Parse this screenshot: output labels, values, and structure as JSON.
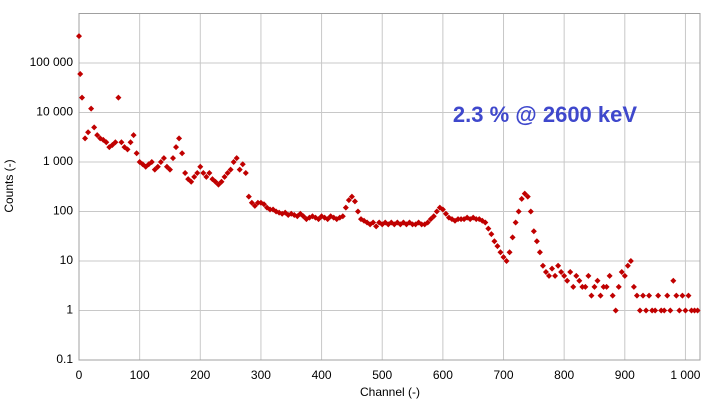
{
  "chart_data": {
    "type": "scatter",
    "annotation": "2.3 % @ 2600 keV",
    "x_label": "Channel (-)",
    "y_label": "Counts (-)",
    "log_y": true,
    "grid": true,
    "color": "#c00000",
    "annotation_color": "#3f48cc",
    "xlim": [
      0,
      1024
    ],
    "ylim": [
      0.1,
      1000000
    ],
    "xticks": [
      0,
      100,
      200,
      300,
      400,
      500,
      600,
      700,
      800,
      900,
      {
        "value": 1000,
        "label": "1 000"
      }
    ],
    "yticks": [
      0.1,
      1,
      10,
      100,
      {
        "value": 1000,
        "label": "1 000"
      },
      {
        "value": 10000,
        "label": "10 000"
      },
      {
        "value": 100000,
        "label": "100 000"
      }
    ],
    "x": [
      0,
      2,
      5,
      10,
      15,
      20,
      25,
      30,
      35,
      40,
      45,
      50,
      55,
      60,
      65,
      70,
      75,
      80,
      85,
      90,
      95,
      100,
      105,
      110,
      115,
      120,
      125,
      130,
      135,
      140,
      145,
      150,
      155,
      160,
      165,
      170,
      175,
      180,
      185,
      190,
      195,
      200,
      205,
      210,
      215,
      220,
      225,
      230,
      235,
      240,
      245,
      250,
      255,
      260,
      265,
      270,
      275,
      280,
      285,
      290,
      295,
      300,
      305,
      310,
      315,
      320,
      325,
      330,
      335,
      340,
      345,
      350,
      355,
      360,
      365,
      370,
      375,
      380,
      385,
      390,
      395,
      400,
      405,
      410,
      415,
      420,
      425,
      430,
      435,
      440,
      445,
      450,
      455,
      460,
      465,
      470,
      475,
      480,
      485,
      490,
      495,
      500,
      505,
      510,
      515,
      520,
      525,
      530,
      535,
      540,
      545,
      550,
      555,
      560,
      565,
      570,
      575,
      580,
      585,
      590,
      595,
      600,
      605,
      610,
      615,
      620,
      625,
      630,
      635,
      640,
      645,
      650,
      655,
      660,
      665,
      670,
      675,
      680,
      685,
      690,
      695,
      700,
      705,
      710,
      715,
      720,
      725,
      730,
      735,
      740,
      745,
      750,
      755,
      760,
      765,
      770,
      775,
      780,
      785,
      790,
      795,
      800,
      805,
      810,
      815,
      820,
      825,
      830,
      835,
      840,
      845,
      850,
      855,
      860,
      865,
      870,
      875,
      880,
      885,
      890,
      895,
      900,
      905,
      910,
      915,
      920,
      925,
      930,
      935,
      940,
      945,
      950,
      955,
      960,
      965,
      970,
      975,
      980,
      985,
      990,
      995,
      1000,
      1005,
      1010,
      1015,
      1020
    ],
    "values": [
      350000,
      60000,
      20000,
      3000,
      4000,
      12000,
      5000,
      3500,
      3000,
      2800,
      2500,
      2000,
      2200,
      2500,
      20000,
      2500,
      2000,
      1800,
      2500,
      3500,
      1500,
      1000,
      900,
      800,
      900,
      1000,
      700,
      800,
      1000,
      1200,
      800,
      700,
      1200,
      2000,
      3000,
      1500,
      600,
      450,
      400,
      500,
      600,
      800,
      600,
      500,
      600,
      450,
      400,
      350,
      400,
      500,
      600,
      700,
      1000,
      1200,
      700,
      900,
      600,
      200,
      150,
      130,
      150,
      150,
      140,
      120,
      110,
      110,
      100,
      95,
      90,
      95,
      85,
      90,
      85,
      80,
      90,
      80,
      70,
      75,
      80,
      75,
      70,
      80,
      75,
      70,
      80,
      75,
      70,
      75,
      80,
      120,
      170,
      200,
      160,
      100,
      70,
      65,
      60,
      55,
      60,
      50,
      60,
      55,
      60,
      55,
      60,
      55,
      60,
      55,
      60,
      55,
      60,
      55,
      55,
      60,
      55,
      55,
      60,
      70,
      80,
      100,
      120,
      110,
      90,
      75,
      70,
      65,
      70,
      70,
      70,
      75,
      70,
      75,
      70,
      70,
      65,
      60,
      45,
      35,
      25,
      20,
      15,
      12,
      10,
      15,
      30,
      60,
      100,
      180,
      230,
      200,
      100,
      40,
      25,
      15,
      8,
      6,
      5,
      7,
      5,
      8,
      6,
      5,
      4,
      6,
      3,
      5,
      4,
      3,
      3,
      5,
      2,
      3,
      4,
      2,
      3,
      3,
      5,
      2,
      1,
      3,
      6,
      5,
      8,
      10,
      3,
      2,
      1,
      2,
      1,
      2,
      1,
      1,
      2,
      1,
      1,
      2,
      1,
      4,
      2,
      1,
      2,
      1,
      2,
      1,
      1,
      1
    ]
  }
}
